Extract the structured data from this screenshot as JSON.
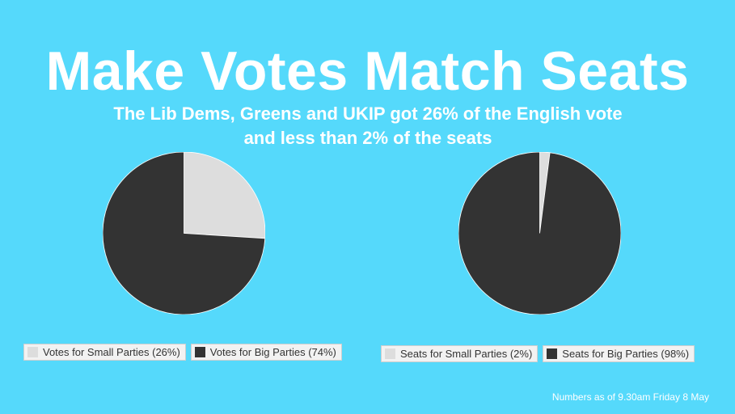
{
  "title": "Make Votes Match Seats",
  "subtitle_line1": "The Lib Dems, Greens and UKIP got 26% of the English vote",
  "subtitle_line2": "and less than 2% of the seats",
  "footnote": "Numbers as of 9.30am Friday 8 May",
  "colors": {
    "background": "#55d9fb",
    "small": "#dddddd",
    "big": "#333333"
  },
  "chart_data": [
    {
      "type": "pie",
      "title": "",
      "legend_position": "bottom",
      "slices": [
        {
          "label": "Votes for Small Parties (26%)",
          "value": 26,
          "color": "#dddddd"
        },
        {
          "label": "Votes for Big Parties (74%)",
          "value": 74,
          "color": "#333333"
        }
      ]
    },
    {
      "type": "pie",
      "title": "",
      "legend_position": "bottom",
      "slices": [
        {
          "label": "Seats for Small Parties (2%)",
          "value": 2,
          "color": "#dddddd"
        },
        {
          "label": "Seats for Big Parties (98%)",
          "value": 98,
          "color": "#333333"
        }
      ]
    }
  ]
}
